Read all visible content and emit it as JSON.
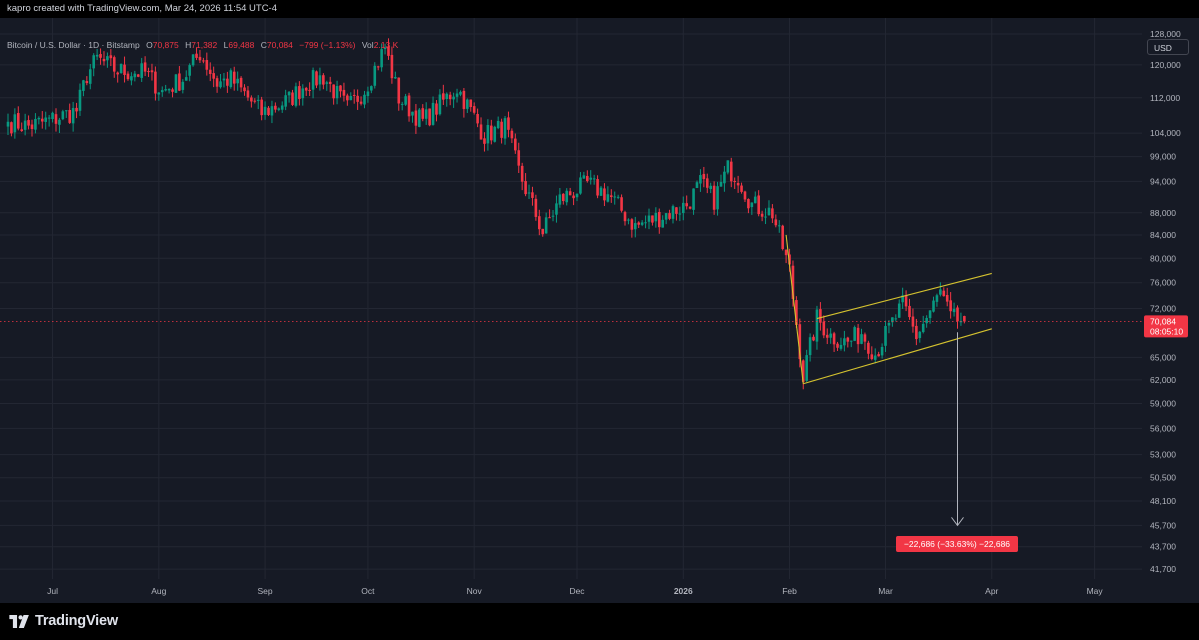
{
  "header": {
    "attribution": "kapro created with TradingView.com, Mar 24, 2026 11:54 UTC-4"
  },
  "legend": {
    "symbol": "Bitcoin / U.S. Dollar · 1D · Bitstamp",
    "open_label": "O",
    "open": "70,875",
    "high_label": "H",
    "high": "71,382",
    "low_label": "L",
    "low": "69,488",
    "close_label": "C",
    "close": "70,084",
    "change": "−799 (−1.13%)",
    "vol_label": "Vol",
    "vol": "2.13 K"
  },
  "currency_button": "USD",
  "price_badge": {
    "price": "70,084",
    "countdown": "08:05:10",
    "color": "#f23645"
  },
  "measure_label": "−22,686 (−33.63%) −22,686",
  "footer": {
    "brand": "TradingView",
    "logo_icon": "tradingview-logo-icon"
  },
  "colors": {
    "up": "#089981",
    "down": "#f23645",
    "channel": "#d4c22f",
    "background": "#161a25"
  },
  "chart_data": {
    "type": "candlestick",
    "scale": "log",
    "title": "",
    "symbol": "Bitcoin / U.S. Dollar · 1D · Bitstamp",
    "y_ticks": [
      "128,000",
      "120,000",
      "112,000",
      "104,000",
      "99,000",
      "94,000",
      "88,000",
      "84,000",
      "80,000",
      "76,000",
      "72,000",
      "65,000",
      "62,000",
      "59,000",
      "56,000",
      "53,000",
      "50,500",
      "48,100",
      "45,700",
      "43,700",
      "41,700"
    ],
    "x_ticks": [
      "Jul",
      "Aug",
      "Sep",
      "Oct",
      "Nov",
      "Dec",
      "2026",
      "Feb",
      "Mar",
      "Apr",
      "May"
    ],
    "ylim": [
      40500,
      131000
    ],
    "start_date": "2025-06-18",
    "daily_close_path": [
      [
        "2025-06-18",
        106500
      ],
      [
        "2025-06-24",
        105500
      ],
      [
        "2025-07-01",
        107000
      ],
      [
        "2025-07-08",
        109000
      ],
      [
        "2025-07-11",
        117500
      ],
      [
        "2025-07-14",
        121500
      ],
      [
        "2025-07-20",
        118500
      ],
      [
        "2025-07-28",
        118000
      ],
      [
        "2025-08-02",
        113500
      ],
      [
        "2025-08-08",
        116500
      ],
      [
        "2025-08-13",
        123000
      ],
      [
        "2025-08-18",
        115500
      ],
      [
        "2025-08-22",
        116500
      ],
      [
        "2025-08-31",
        108500
      ],
      [
        "2025-09-08",
        111500
      ],
      [
        "2025-09-13",
        115500
      ],
      [
        "2025-09-18",
        117000
      ],
      [
        "2025-09-25",
        109500
      ],
      [
        "2025-09-30",
        114000
      ],
      [
        "2025-10-06",
        124500
      ],
      [
        "2025-10-10",
        112000
      ],
      [
        "2025-10-17",
        106500
      ],
      [
        "2025-10-27",
        114500
      ],
      [
        "2025-11-04",
        103500
      ],
      [
        "2025-11-10",
        105500
      ],
      [
        "2025-11-14",
        96000
      ],
      [
        "2025-11-21",
        84500
      ],
      [
        "2025-11-26",
        90500
      ],
      [
        "2025-12-04",
        93500
      ],
      [
        "2025-12-10",
        91500
      ],
      [
        "2025-12-18",
        85500
      ],
      [
        "2025-12-26",
        87500
      ],
      [
        "2026-01-02",
        89500
      ],
      [
        "2026-01-06",
        93500
      ],
      [
        "2026-01-10",
        90500
      ],
      [
        "2026-01-14",
        96500
      ],
      [
        "2026-01-17",
        95000
      ],
      [
        "2026-01-21",
        89500
      ],
      [
        "2026-01-27",
        88000
      ],
      [
        "2026-02-01",
        78000
      ],
      [
        "2026-02-05",
        62500
      ],
      [
        "2026-02-09",
        70500
      ],
      [
        "2026-02-13",
        68000
      ],
      [
        "2026-02-18",
        67000
      ],
      [
        "2026-02-22",
        68500
      ],
      [
        "2026-02-26",
        65500
      ],
      [
        "2026-03-02",
        69000
      ],
      [
        "2026-03-06",
        72500
      ],
      [
        "2026-03-10",
        68000
      ],
      [
        "2026-03-14",
        71500
      ],
      [
        "2026-03-17",
        74500
      ],
      [
        "2026-03-20",
        70500
      ],
      [
        "2026-03-24",
        70084
      ]
    ],
    "annotations": {
      "channel_upper": [
        [
          "2026-02-09",
          70500
        ],
        [
          "2026-04-01",
          77500
        ]
      ],
      "channel_lower": [
        [
          "2026-02-05",
          61500
        ],
        [
          "2026-04-01",
          69000
        ]
      ],
      "pole": [
        [
          "2026-01-31",
          84000
        ],
        [
          "2026-02-05",
          61500
        ]
      ],
      "measure_arrow": {
        "date": "2026-03-22",
        "from": 68500,
        "to": 45700
      },
      "last_price": 70084
    }
  }
}
